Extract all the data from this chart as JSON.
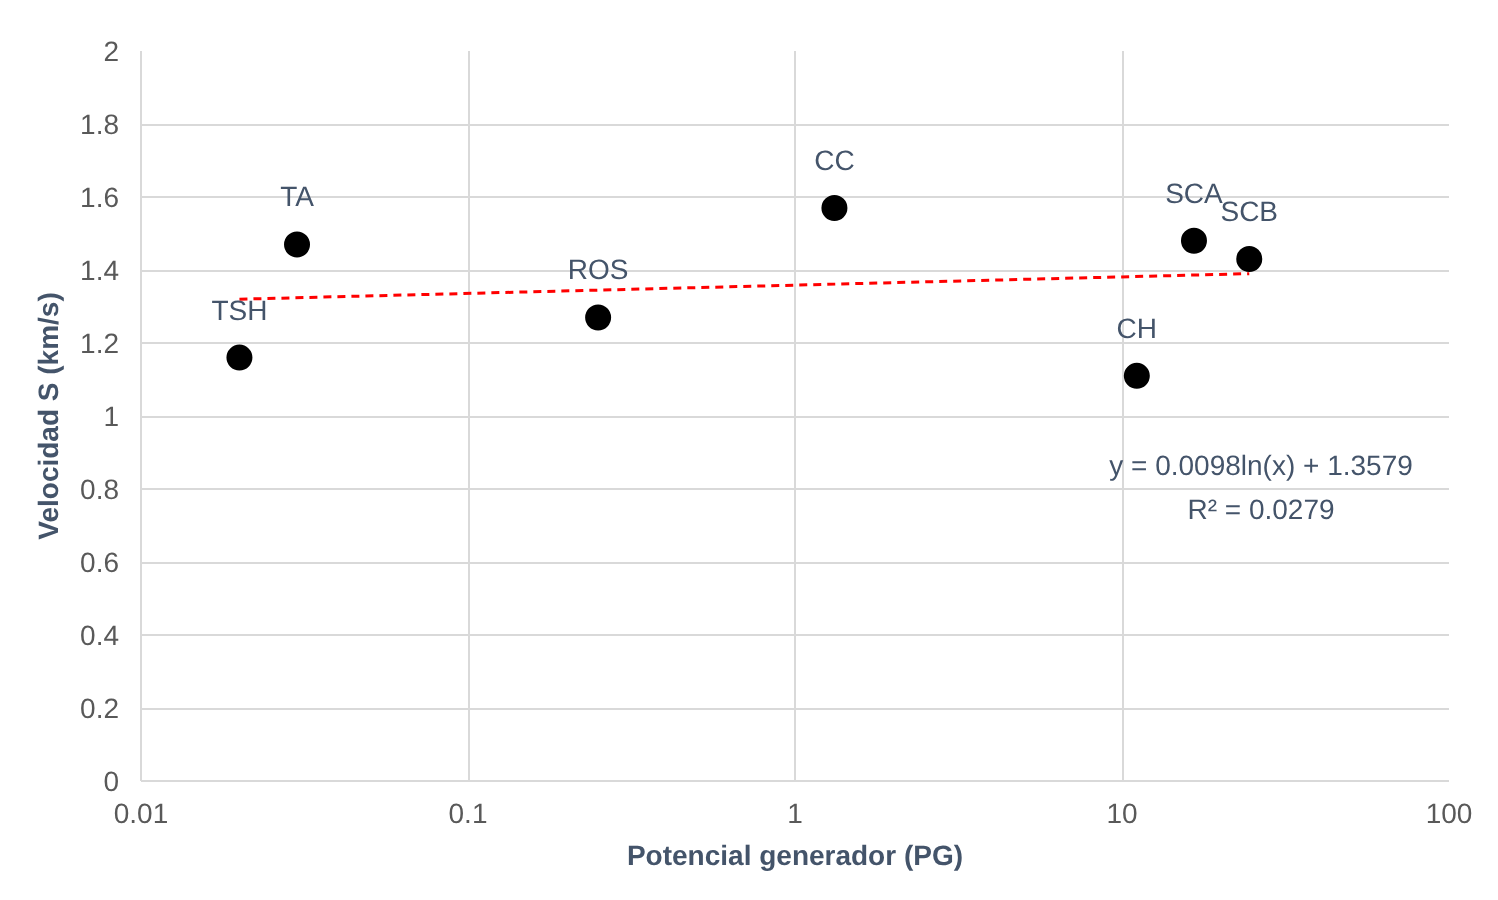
{
  "chart_data": {
    "type": "scatter",
    "xlabel": "Potencial generador (PG)",
    "ylabel": "Velocidad S (km/s)",
    "log": "x",
    "grid": true,
    "marker": "circle",
    "xlim": [
      0.01,
      100
    ],
    "xticks": [
      0.01,
      0.1,
      1,
      10,
      100
    ],
    "ylim": [
      0,
      2
    ],
    "yticks": [
      0,
      0.2,
      0.4,
      0.6,
      0.8,
      1,
      1.2,
      1.4,
      1.6,
      1.8,
      2
    ],
    "series": [
      {
        "color": "#000000",
        "x": [
          0.02,
          0.03,
          0.25,
          1.32,
          11.1,
          16.6,
          24.5
        ],
        "values": [
          1.16,
          1.47,
          1.27,
          1.57,
          1.11,
          1.48,
          1.43
        ]
      },
      {
        "type": "line",
        "color": "#ff0000",
        "line_style": "dashed",
        "marker": "none",
        "x": [
          0.02,
          24.5
        ],
        "values": [
          1.32,
          1.39
        ]
      }
    ],
    "annotations": [
      {
        "text": "TSH",
        "x": 0.02,
        "y": 1.16
      },
      {
        "text": "TA",
        "x": 0.03,
        "y": 1.47
      },
      {
        "text": "ROS",
        "x": 0.25,
        "y": 1.27
      },
      {
        "text": "CC",
        "x": 1.32,
        "y": 1.57
      },
      {
        "text": "CH",
        "x": 11.1,
        "y": 1.11
      },
      {
        "text": "SCA",
        "x": 16.6,
        "y": 1.48
      },
      {
        "text": "SCB",
        "x": 24.5,
        "y": 1.43
      },
      "y = 0.0098ln(x) + 1.3579",
      "R² = 0.0279"
    ]
  }
}
